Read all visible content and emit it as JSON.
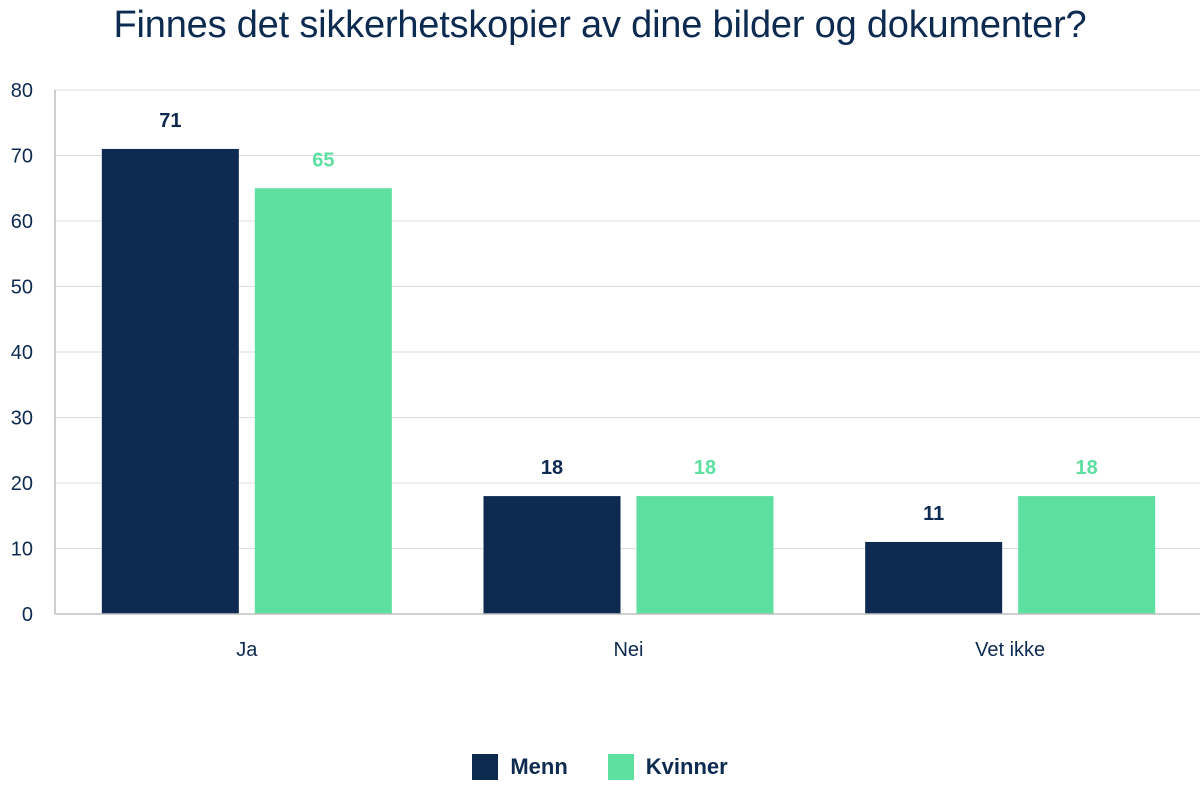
{
  "chart_data": {
    "type": "bar",
    "title": "Finnes det sikkerhetskopier av dine bilder og dokumenter?",
    "categories": [
      "Ja",
      "Nei",
      "Vet ikke"
    ],
    "series": [
      {
        "name": "Menn",
        "values": [
          71,
          18,
          11
        ],
        "color": "#0d2a50"
      },
      {
        "name": "Kvinner",
        "values": [
          65,
          18,
          18
        ],
        "color": "#5ddfa0"
      }
    ],
    "ylim": [
      0,
      80
    ],
    "yticks": [
      0,
      10,
      20,
      30,
      40,
      50,
      60,
      70,
      80
    ],
    "grid": true,
    "legend_position": "bottom-center",
    "xlabel": "",
    "ylabel": ""
  }
}
